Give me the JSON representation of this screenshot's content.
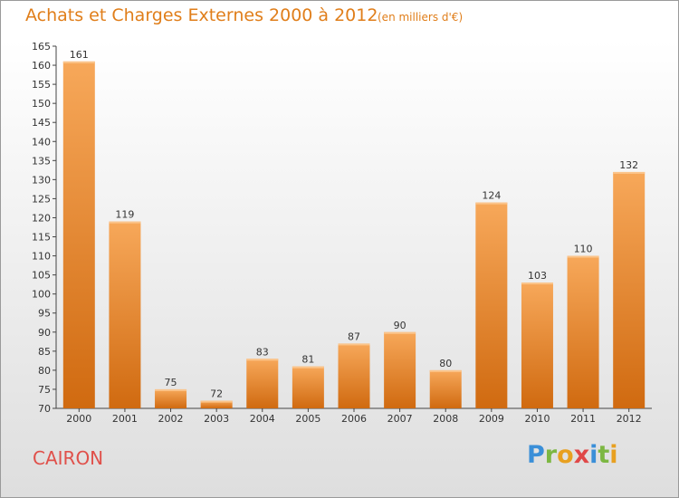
{
  "title": "Achats et Charges Externes 2000 à 2012",
  "subtitle": "(en milliers d'€)",
  "commune": "CAIRON",
  "brand": {
    "letters": [
      "P",
      "r",
      "o",
      "x",
      "i",
      "t",
      "i"
    ],
    "colors": [
      "#3a8fd8",
      "#7cb742",
      "#e8a020",
      "#e04848",
      "#3a8fd8",
      "#7cb742",
      "#e8a020"
    ]
  },
  "colors": {
    "title": "#e07e1a",
    "commune": "#e0504a",
    "bar_light": "#f7a85a",
    "bar_dark": "#d06a10"
  },
  "chart_data": {
    "type": "bar",
    "categories": [
      "2000",
      "2001",
      "2002",
      "2003",
      "2004",
      "2005",
      "2006",
      "2007",
      "2008",
      "2009",
      "2010",
      "2011",
      "2012"
    ],
    "values": [
      161,
      119,
      75,
      72,
      83,
      81,
      87,
      90,
      80,
      124,
      103,
      110,
      132
    ],
    "ylim": [
      70,
      165
    ],
    "yticks": [
      70,
      75,
      80,
      85,
      90,
      95,
      100,
      105,
      110,
      115,
      120,
      125,
      130,
      135,
      140,
      145,
      150,
      155,
      160,
      165
    ],
    "grid": false,
    "legend": "none"
  }
}
